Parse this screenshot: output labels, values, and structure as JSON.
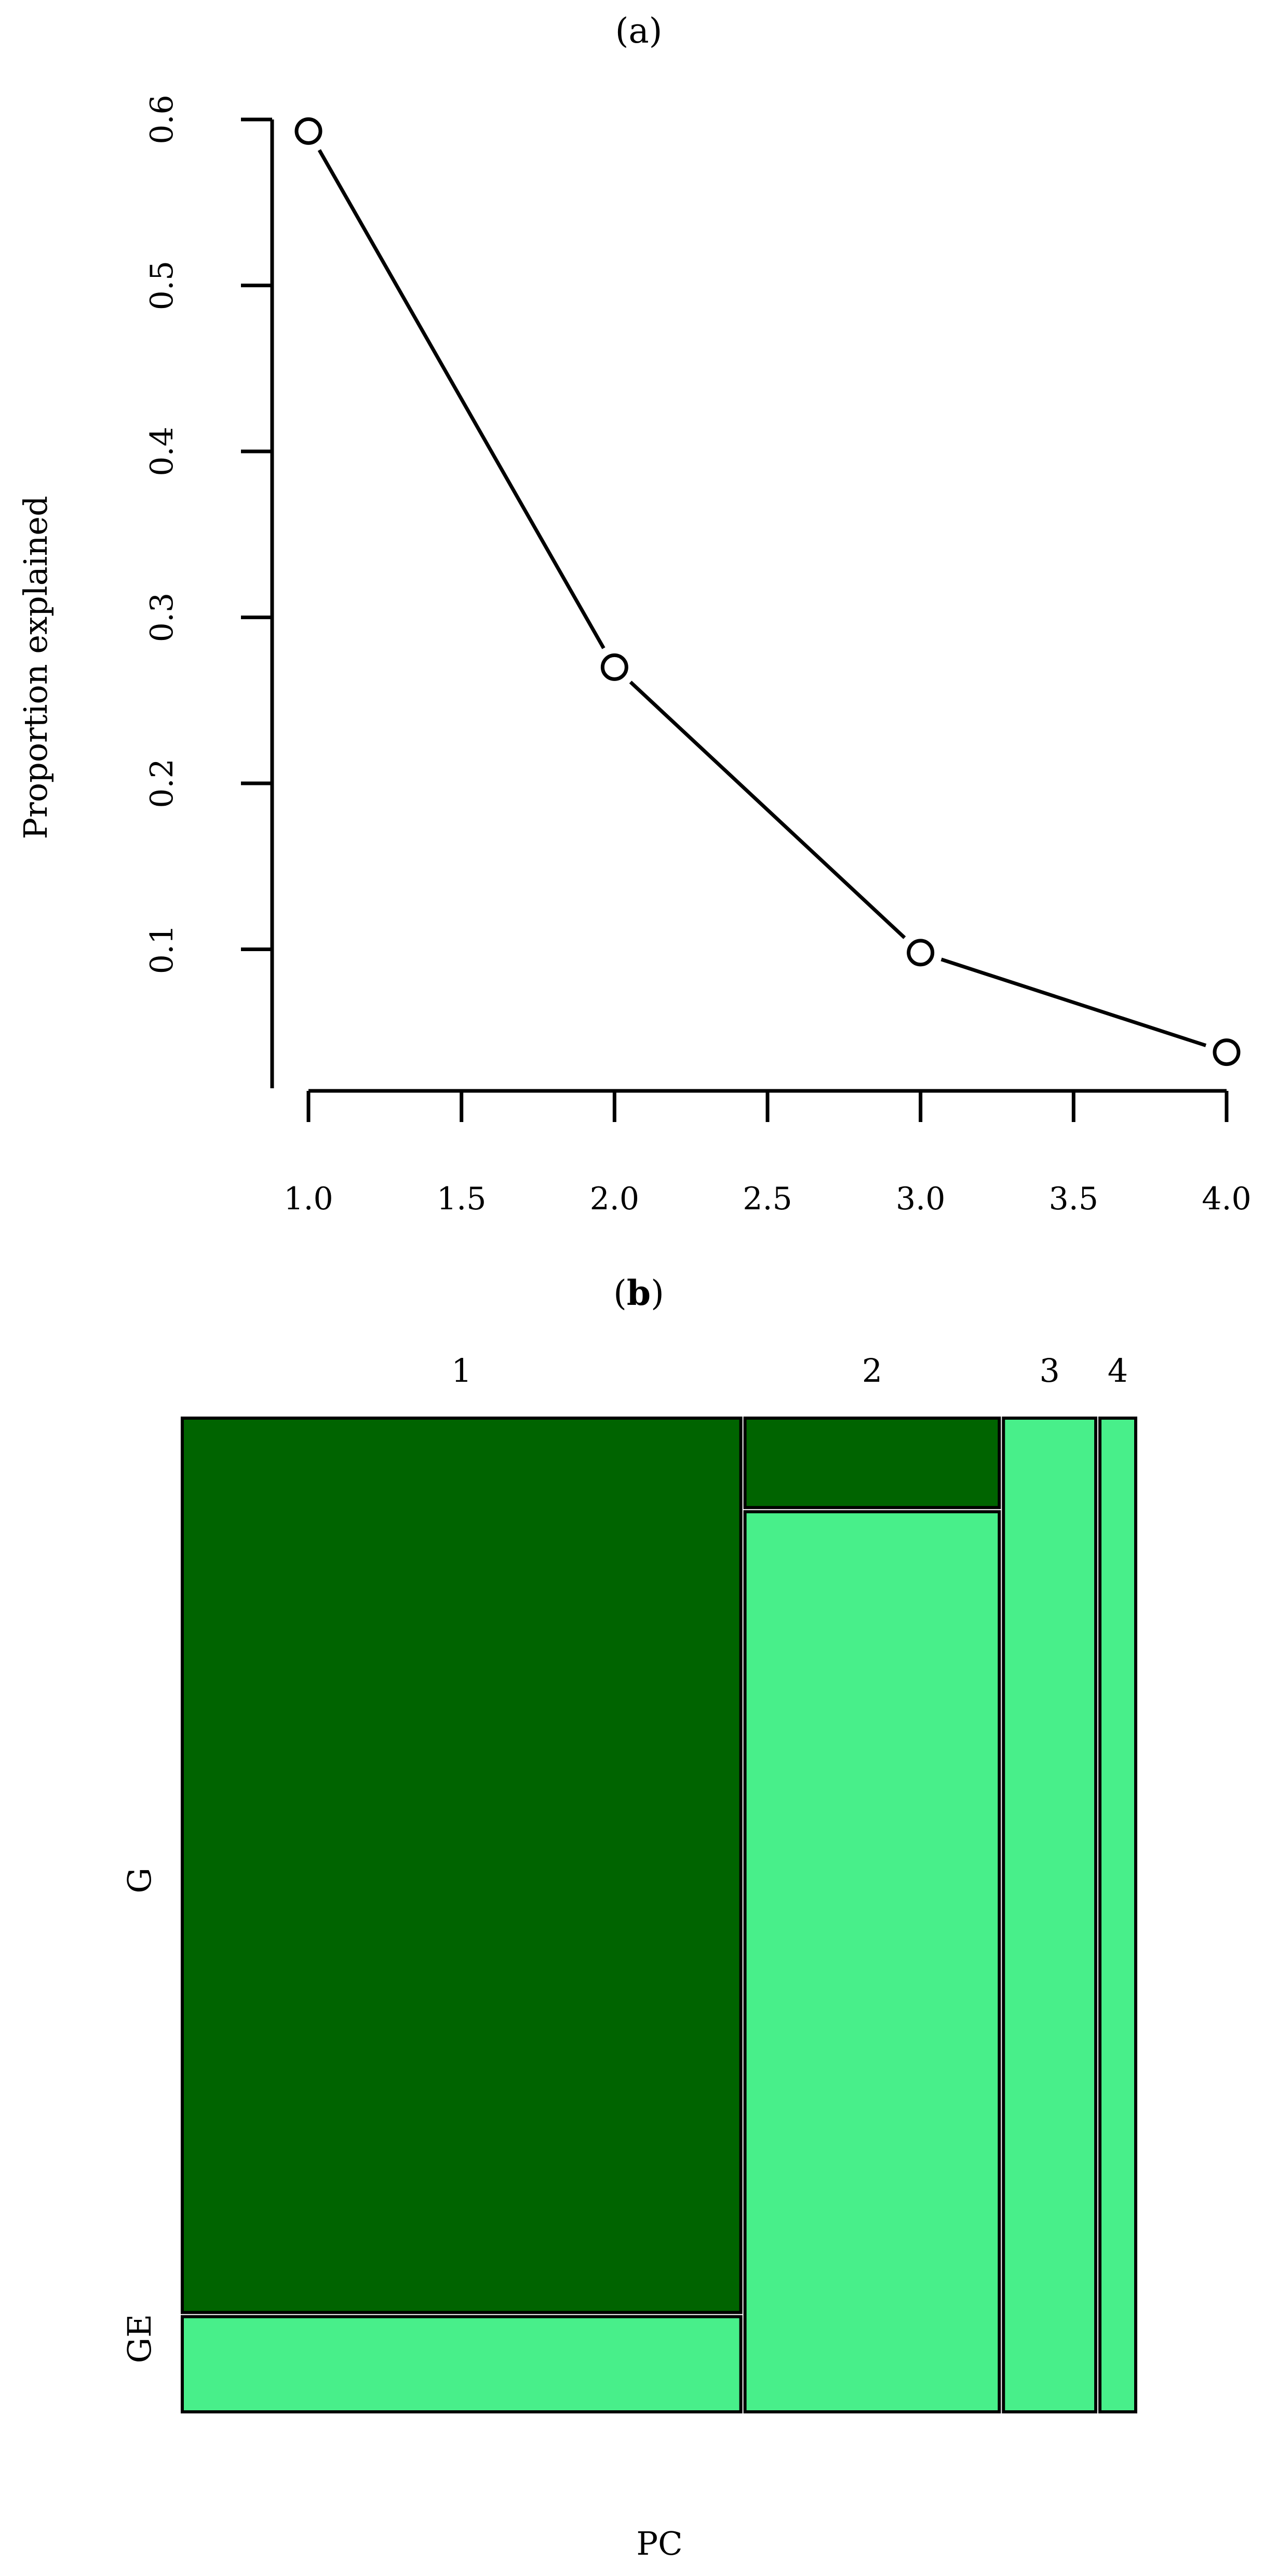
{
  "panels": {
    "a": {
      "open": "(",
      "letter": "a",
      "close": ")"
    },
    "b": {
      "open": "(",
      "letter": "b",
      "close": ")"
    }
  },
  "colors": {
    "dark_green": "#006400",
    "light_green": "#48ef8a",
    "line": "#000000"
  },
  "chart_data": [
    {
      "type": "line",
      "title": "",
      "xlabel": "",
      "ylabel": "Proportion explained",
      "x": [
        1.0,
        2.0,
        3.0,
        4.0
      ],
      "y": [
        0.593,
        0.27,
        0.098,
        0.038
      ],
      "xlim": [
        1.0,
        4.0
      ],
      "ylim": [
        0.0,
        0.6
      ],
      "xticks": [
        1.0,
        1.5,
        2.0,
        2.5,
        3.0,
        3.5,
        4.0
      ],
      "xtick_labels": [
        "1.0",
        "1.5",
        "2.0",
        "2.5",
        "3.0",
        "3.5",
        "4.0"
      ],
      "yticks": [
        0.1,
        0.2,
        0.3,
        0.4,
        0.5,
        0.6
      ],
      "ytick_labels": [
        "0.1",
        "0.2",
        "0.3",
        "0.4",
        "0.5",
        "0.6"
      ],
      "marker": "open-circle",
      "grid": false
    },
    {
      "type": "mosaic",
      "xlabel": "PC",
      "columns": [
        {
          "label": "1",
          "width": 0.593,
          "G": 0.9,
          "GE": 0.1
        },
        {
          "label": "2",
          "width": 0.27,
          "G": 0.09,
          "GE": 0.91
        },
        {
          "label": "3",
          "width": 0.098,
          "G": 0.0,
          "GE": 1.0
        },
        {
          "label": "4",
          "width": 0.038,
          "G": 0.0,
          "GE": 1.0
        }
      ],
      "row_labels": [
        "G",
        "GE"
      ],
      "grid": false
    }
  ]
}
